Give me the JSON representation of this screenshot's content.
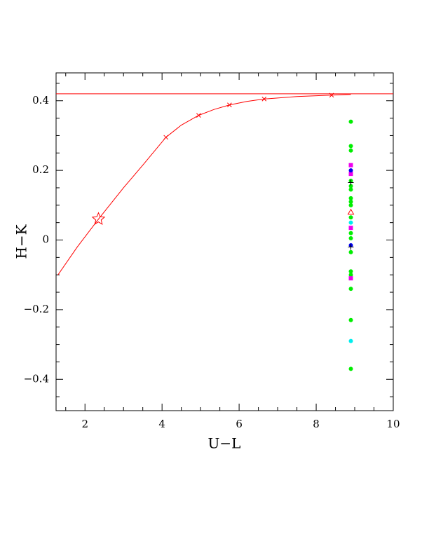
{
  "chart_data": {
    "type": "scatter",
    "xlabel": "U−L",
    "ylabel": "H−K",
    "xlim": [
      1.25,
      10
    ],
    "ylim": [
      -0.49,
      0.48
    ],
    "xticks": [
      2,
      4,
      6,
      8,
      10
    ],
    "yticks": [
      {
        "value": -0.4,
        "label": "−0.4"
      },
      {
        "value": -0.2,
        "label": "−0.2"
      },
      0,
      0.2,
      0.4
    ],
    "xminorticks": [
      1.5,
      2.5,
      3,
      3.5,
      4.5,
      5,
      5.5,
      6.5,
      7,
      7.5,
      8.5,
      9,
      9.5
    ],
    "yminorticks": [
      -0.45,
      -0.35,
      -0.3,
      -0.25,
      -0.15,
      -0.1,
      -0.05,
      0.05,
      0.1,
      0.15,
      0.25,
      0.3,
      0.35,
      0.45
    ],
    "hline": {
      "value": 0.42,
      "color": "#ff0000"
    },
    "series": [
      {
        "style": "line",
        "color": "#ff0000",
        "x": [
          1.3,
          1.8,
          2.35,
          3.0,
          3.5,
          4.1,
          4.5,
          4.95,
          5.35,
          5.75,
          6.2,
          6.65,
          7.5,
          8.4,
          8.9
        ],
        "values": [
          -0.1,
          -0.02,
          0.06,
          0.15,
          0.215,
          0.295,
          0.33,
          0.358,
          0.375,
          0.388,
          0.398,
          0.405,
          0.412,
          0.416,
          0.418
        ]
      },
      {
        "style": "x",
        "color": "#ff0000",
        "x": [
          4.1,
          4.95,
          5.75,
          6.65,
          8.4
        ],
        "values": [
          0.295,
          0.358,
          0.388,
          0.405,
          0.416
        ]
      },
      {
        "style": "star",
        "color": "#ff0000",
        "x": [
          2.35
        ],
        "values": [
          0.06
        ]
      },
      {
        "style": "circle",
        "color": "#00ee00",
        "x": [
          8.9,
          8.9,
          8.9,
          8.9,
          8.9,
          8.9,
          8.9,
          8.9,
          8.9,
          8.9,
          8.9,
          8.9,
          8.9,
          8.9,
          8.9,
          8.9,
          8.9,
          8.9
        ],
        "values": [
          0.34,
          0.27,
          0.257,
          0.17,
          0.155,
          0.145,
          0.12,
          0.11,
          0.1,
          0.065,
          0.02,
          0.005,
          -0.035,
          -0.09,
          -0.1,
          -0.14,
          -0.23,
          -0.37
        ]
      },
      {
        "style": "square",
        "color": "#ee00ee",
        "x": [
          8.9,
          8.9,
          8.9,
          8.9
        ],
        "values": [
          0.215,
          0.19,
          0.035,
          -0.11
        ]
      },
      {
        "style": "circle",
        "color": "#0000ee",
        "x": [
          8.9,
          8.9
        ],
        "values": [
          0.2,
          -0.015
        ]
      },
      {
        "style": "circle",
        "color": "#00eeee",
        "x": [
          8.9,
          8.9
        ],
        "values": [
          0.05,
          -0.29
        ]
      },
      {
        "style": "triangle",
        "color": "#ff0000",
        "x": [
          8.9
        ],
        "values": [
          0.08
        ]
      },
      {
        "style": "plus",
        "color": "#000000",
        "x": [
          8.9,
          8.9
        ],
        "values": [
          0.165,
          -0.02
        ]
      }
    ]
  }
}
